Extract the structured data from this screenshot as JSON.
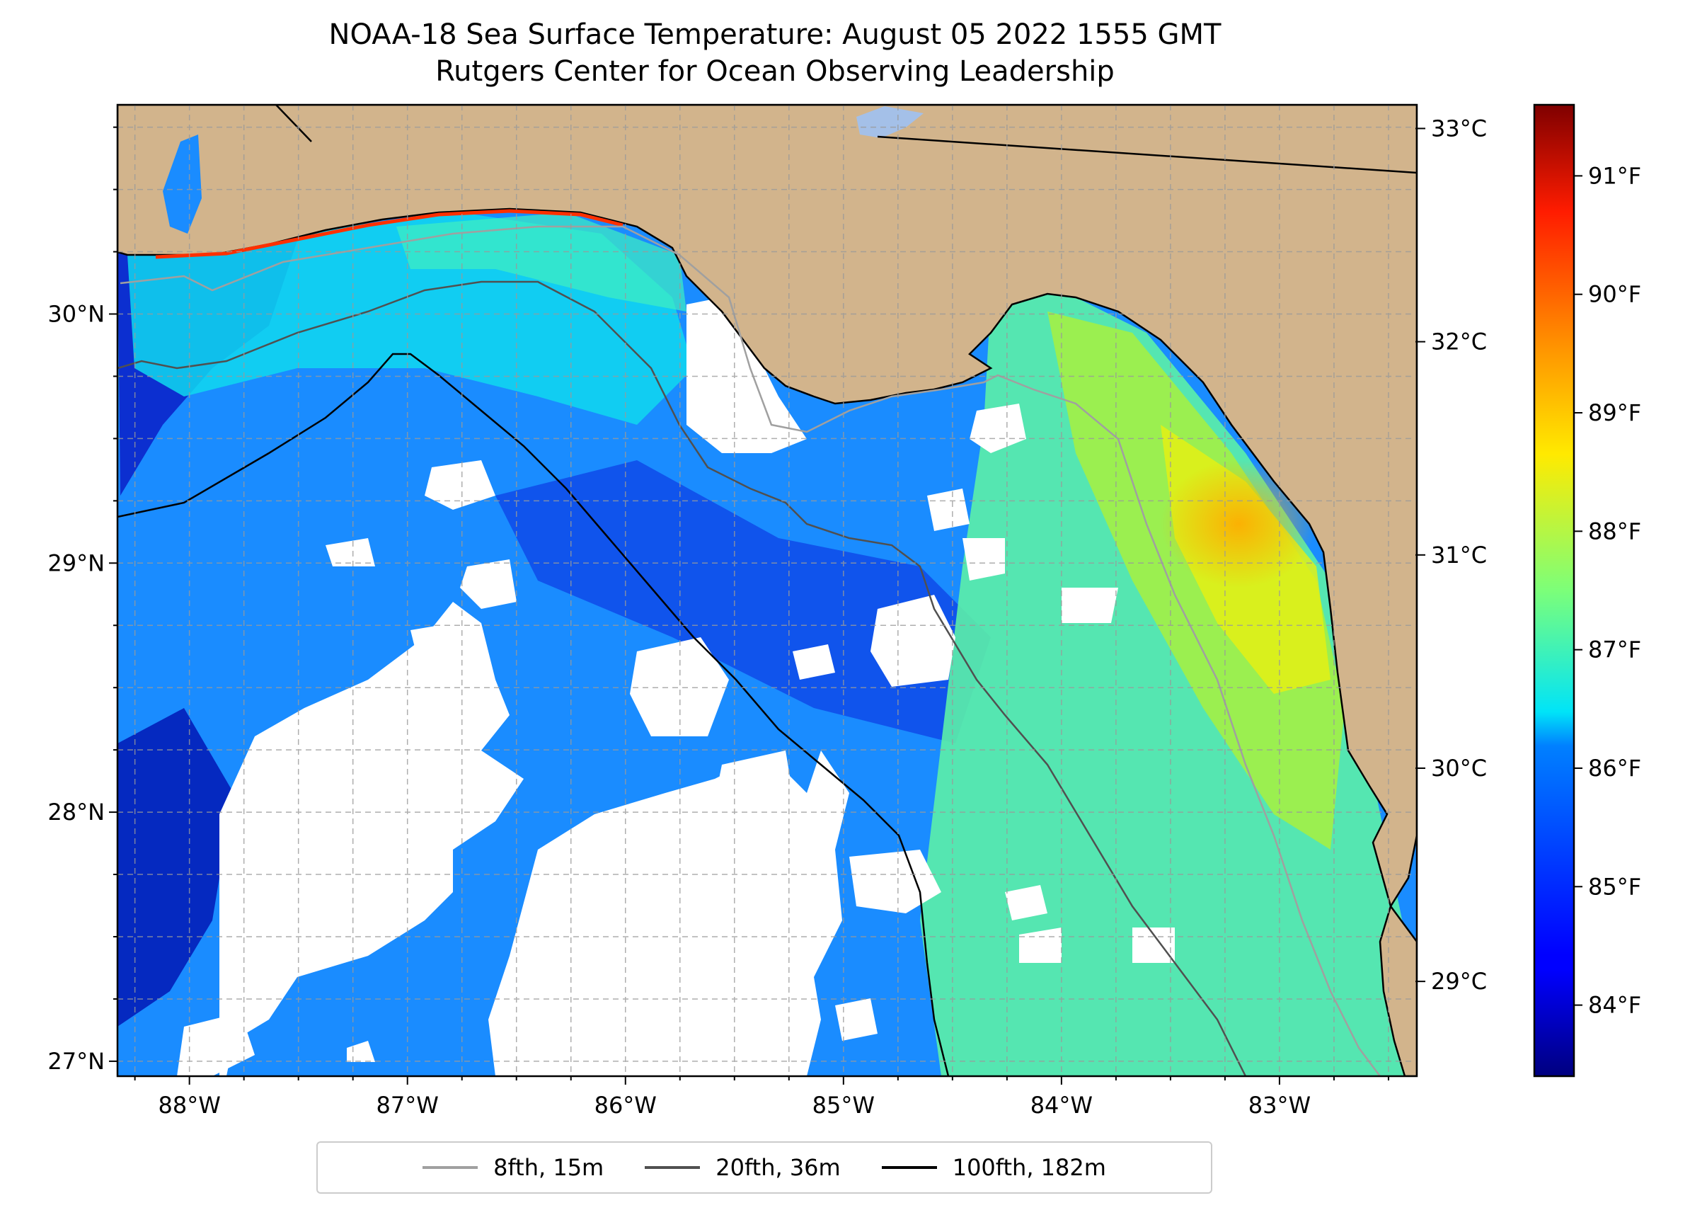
{
  "title": {
    "line1": "NOAA-18 Sea Surface Temperature: August 05 2022 1555 GMT",
    "line2": "Rutgers Center for Ocean Observing Leadership"
  },
  "map": {
    "lon_range": [
      -88.33,
      -82.37
    ],
    "lat_range": [
      26.94,
      30.84
    ],
    "lon_ticks": [
      {
        "value": -88,
        "label": "88°W"
      },
      {
        "value": -87,
        "label": "87°W"
      },
      {
        "value": -86,
        "label": "86°W"
      },
      {
        "value": -85,
        "label": "85°W"
      },
      {
        "value": -84,
        "label": "84°W"
      },
      {
        "value": -83,
        "label": "83°W"
      }
    ],
    "lat_ticks": [
      {
        "value": 27,
        "label": "27°N"
      },
      {
        "value": 28,
        "label": "28°N"
      },
      {
        "value": 29,
        "label": "29°N"
      },
      {
        "value": 30,
        "label": "30°N"
      }
    ],
    "gridlines": true,
    "land_color": "#d2b48c",
    "no_data_color": "#ffffff"
  },
  "colorbar": {
    "colormap": "jet",
    "celsius_ticks": [
      {
        "value": 29,
        "label": "29°C"
      },
      {
        "value": 30,
        "label": "30°C"
      },
      {
        "value": 31,
        "label": "31°C"
      },
      {
        "value": 32,
        "label": "32°C"
      },
      {
        "value": 33,
        "label": "33°C"
      }
    ],
    "fahrenheit_ticks": [
      {
        "value": 84,
        "label": "84°F"
      },
      {
        "value": 85,
        "label": "85°F"
      },
      {
        "value": 86,
        "label": "86°F"
      },
      {
        "value": 87,
        "label": "87°F"
      },
      {
        "value": 88,
        "label": "88°F"
      },
      {
        "value": 89,
        "label": "89°F"
      },
      {
        "value": 90,
        "label": "90°F"
      },
      {
        "value": 91,
        "label": "91°F"
      }
    ],
    "range_f": [
      83.4,
      91.6
    ]
  },
  "legend": {
    "position": "bottom-center",
    "items": [
      {
        "label": "8fth, 15m",
        "color": "#a0a0a0"
      },
      {
        "label": "20fth, 36m",
        "color": "#505050"
      },
      {
        "label": "100fth, 182m",
        "color": "#000000"
      }
    ]
  }
}
